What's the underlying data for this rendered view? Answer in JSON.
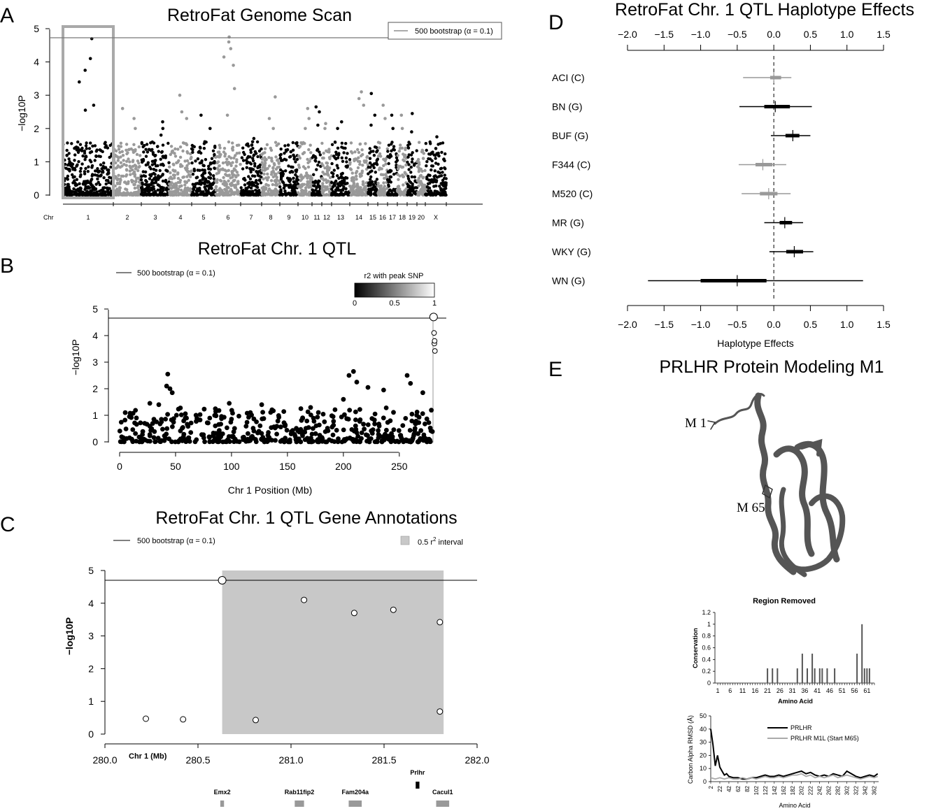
{
  "panel_letters": {
    "a": "A",
    "b": "B",
    "c": "C",
    "d": "D",
    "e": "E"
  },
  "colors": {
    "dark": "#000000",
    "light": "#999999",
    "shade": "#c8c8c8",
    "box": "#a9a9a9"
  },
  "chart_data": [
    {
      "id": "A",
      "type": "scatter",
      "title": "RetroFat Genome Scan",
      "ylabel": "−log10P",
      "xlabel": "Chr",
      "ylim": [
        0,
        5
      ],
      "yticks": [
        "0",
        "1",
        "2",
        "3",
        "4",
        "5"
      ],
      "threshold": 4.7,
      "legend": "500 bootstrap (α = 0.1)",
      "legend_position": "top-right",
      "highlight_chromosome": "1",
      "chromosomes": [
        {
          "name": "1",
          "tone": "dark",
          "peaks": [
            2.55,
            2.7,
            4.7,
            4.1,
            3.75,
            3.4
          ]
        },
        {
          "name": "2",
          "tone": "light",
          "peaks": [
            2.6,
            2.3,
            2.0
          ]
        },
        {
          "name": "3",
          "tone": "dark",
          "peaks": [
            2.2,
            2.0,
            1.8
          ]
        },
        {
          "name": "4",
          "tone": "light",
          "peaks": [
            3.0,
            2.5,
            2.3
          ]
        },
        {
          "name": "5",
          "tone": "dark",
          "peaks": [
            2.4,
            2.0,
            1.6
          ]
        },
        {
          "name": "6",
          "tone": "light",
          "peaks": [
            4.75,
            4.6,
            4.4,
            4.15,
            3.9,
            3.2,
            2.4
          ]
        },
        {
          "name": "7",
          "tone": "dark",
          "peaks": [
            1.7,
            1.6,
            1.5
          ]
        },
        {
          "name": "8",
          "tone": "light",
          "peaks": [
            2.95,
            2.3,
            2.0
          ]
        },
        {
          "name": "9",
          "tone": "dark",
          "peaks": [
            1.5,
            1.3,
            1.2
          ]
        },
        {
          "name": "10",
          "tone": "light",
          "peaks": [
            2.6,
            2.3,
            2.0
          ]
        },
        {
          "name": "11",
          "tone": "dark",
          "peaks": [
            2.65,
            2.5,
            2.1
          ]
        },
        {
          "name": "12",
          "tone": "light",
          "peaks": [
            2.15,
            2.0
          ]
        },
        {
          "name": "13",
          "tone": "dark",
          "peaks": [
            2.2,
            2.0
          ]
        },
        {
          "name": "14",
          "tone": "light",
          "peaks": [
            3.1,
            2.9,
            2.7
          ]
        },
        {
          "name": "15",
          "tone": "dark",
          "peaks": [
            3.05,
            2.4,
            2.1
          ]
        },
        {
          "name": "16",
          "tone": "light",
          "peaks": [
            2.7,
            2.3
          ]
        },
        {
          "name": "17",
          "tone": "dark",
          "peaks": [
            2.4,
            2.0
          ]
        },
        {
          "name": "18",
          "tone": "light",
          "peaks": [
            2.4,
            2.0
          ]
        },
        {
          "name": "19",
          "tone": "dark",
          "peaks": [
            2.45,
            1.9
          ]
        },
        {
          "name": "20",
          "tone": "light",
          "peaks": [
            1.3,
            1.1
          ]
        },
        {
          "name": "X",
          "tone": "dark",
          "peaks": [
            1.75,
            1.4
          ]
        }
      ]
    },
    {
      "id": "B",
      "type": "scatter",
      "title": "RetroFat Chr. 1 QTL",
      "xlabel": "Chr 1 Position (Mb)",
      "ylabel": "−log10P",
      "xlim": [
        0,
        282
      ],
      "ylim": [
        0,
        5
      ],
      "xticks": [
        "0",
        "50",
        "100",
        "150",
        "200",
        "250"
      ],
      "yticks": [
        "0",
        "1",
        "2",
        "3",
        "4",
        "5"
      ],
      "threshold": 4.7,
      "legend": "500 bootstrap (α = 0.1)",
      "colorbar": {
        "title": "r2 with peak SNP",
        "ticks": [
          "0",
          "0.5",
          "1"
        ]
      },
      "peak": {
        "x": 280.63,
        "y": 4.7
      },
      "top_points": [
        {
          "x": 43,
          "y": 2.55
        },
        {
          "x": 42,
          "y": 2.1
        },
        {
          "x": 45,
          "y": 2.0
        },
        {
          "x": 47,
          "y": 1.85
        },
        {
          "x": 209,
          "y": 2.65
        },
        {
          "x": 205,
          "y": 2.5
        },
        {
          "x": 212,
          "y": 2.25
        },
        {
          "x": 200,
          "y": 1.6
        },
        {
          "x": 222,
          "y": 2.05
        },
        {
          "x": 236,
          "y": 1.95
        },
        {
          "x": 257,
          "y": 2.5
        },
        {
          "x": 260,
          "y": 2.2
        },
        {
          "x": 271,
          "y": 1.85
        },
        {
          "x": 98,
          "y": 1.45
        },
        {
          "x": 127,
          "y": 1.4
        },
        {
          "x": 27,
          "y": 1.45
        },
        {
          "x": 35,
          "y": 1.4
        },
        {
          "x": 162,
          "y": 1.25
        },
        {
          "x": 5,
          "y": 1.1
        },
        {
          "x": 15,
          "y": 0.9
        }
      ],
      "near_peak": [
        {
          "x": 281.07,
          "y": 4.1
        },
        {
          "x": 281.34,
          "y": 3.7
        },
        {
          "x": 281.55,
          "y": 3.8
        },
        {
          "x": 281.8,
          "y": 3.42
        }
      ]
    },
    {
      "id": "C",
      "type": "scatter",
      "title": "RetroFat Chr. 1 QTL Gene Annotations",
      "xlabel": "Chr 1 (Mb)",
      "ylabel": "−log10P",
      "xlim": [
        280.0,
        282.0
      ],
      "ylim": [
        0,
        5
      ],
      "xticks": [
        "280.0",
        "280.5",
        "281.0",
        "281.5",
        "282.0"
      ],
      "yticks": [
        "0",
        "1",
        "2",
        "3",
        "4",
        "5"
      ],
      "threshold": 4.7,
      "legend": "500 bootstrap (α = 0.1)",
      "interval_legend": "0.5 r",
      "interval_legend_sup": "2",
      "interval_legend_tail": " interval",
      "interval": [
        280.63,
        281.82
      ],
      "points": [
        {
          "x": 280.22,
          "y": 0.47
        },
        {
          "x": 280.42,
          "y": 0.45
        },
        {
          "x": 280.63,
          "y": 4.7
        },
        {
          "x": 280.81,
          "y": 0.43
        },
        {
          "x": 281.07,
          "y": 4.1
        },
        {
          "x": 281.34,
          "y": 3.7
        },
        {
          "x": 281.55,
          "y": 3.8
        },
        {
          "x": 281.8,
          "y": 3.42
        },
        {
          "x": 281.8,
          "y": 0.69
        }
      ],
      "genes": [
        {
          "name": "Emx2",
          "start": 280.62,
          "end": 280.64,
          "row": 2
        },
        {
          "name": "Rab11fip2",
          "start": 281.02,
          "end": 281.07,
          "row": 2
        },
        {
          "name": "Fam204a",
          "start": 281.31,
          "end": 281.38,
          "row": 2
        },
        {
          "name": "Prlhr",
          "start": 281.67,
          "end": 281.69,
          "row": 1
        },
        {
          "name": "Cacul1",
          "start": 281.78,
          "end": 281.85,
          "row": 2
        }
      ]
    },
    {
      "id": "D",
      "type": "scatter",
      "title": "RetroFat Chr. 1 QTL Haplotype Effects",
      "xlabel": "Haplotype Effects",
      "xlim": [
        -2.0,
        1.5
      ],
      "xticks": [
        "−2.0",
        "−1.5",
        "−1.0",
        "−0.5",
        "0.0",
        "0.5",
        "1.0",
        "1.5"
      ],
      "strains": [
        {
          "label": "ACI (C)",
          "tone": "light",
          "mean": 0.0,
          "ci90": [
            -0.42,
            0.24
          ],
          "ci50": [
            -0.05,
            0.1
          ]
        },
        {
          "label": "BN (G)",
          "tone": "dark",
          "mean": 0.02,
          "ci90": [
            -0.47,
            0.52
          ],
          "ci50": [
            -0.13,
            0.22
          ]
        },
        {
          "label": "BUF (G)",
          "tone": "dark",
          "mean": 0.26,
          "ci90": [
            -0.04,
            0.5
          ],
          "ci50": [
            0.16,
            0.35
          ]
        },
        {
          "label": "F344 (C)",
          "tone": "light",
          "mean": -0.15,
          "ci90": [
            -0.48,
            0.17
          ],
          "ci50": [
            -0.25,
            -0.02
          ]
        },
        {
          "label": "M520 (C)",
          "tone": "light",
          "mean": -0.07,
          "ci90": [
            -0.44,
            0.23
          ],
          "ci50": [
            -0.19,
            0.05
          ]
        },
        {
          "label": "MR (G)",
          "tone": "dark",
          "mean": 0.15,
          "ci90": [
            -0.13,
            0.4
          ],
          "ci50": [
            0.08,
            0.25
          ]
        },
        {
          "label": "WKY (G)",
          "tone": "dark",
          "mean": 0.28,
          "ci90": [
            -0.06,
            0.54
          ],
          "ci50": [
            0.17,
            0.4
          ]
        },
        {
          "label": "WN (G)",
          "tone": "dark",
          "mean": -0.5,
          "ci90": [
            -1.72,
            1.22
          ],
          "ci50": [
            -1.0,
            -0.1
          ]
        }
      ]
    },
    {
      "id": "E1",
      "type": "bar",
      "title": "Region Removed",
      "xlabel": "Amino Acid",
      "ylabel": "Conservation",
      "ylim": [
        0,
        1.2
      ],
      "yticks": [
        "0",
        "0.2",
        "0.4",
        "0.6",
        "0.8",
        "1",
        "1.2"
      ],
      "xticks": [
        "1",
        "6",
        "11",
        "16",
        "21",
        "26",
        "31",
        "36",
        "41",
        "46",
        "51",
        "56",
        "61"
      ],
      "categories": [
        21,
        23,
        25,
        33,
        35,
        37,
        39,
        40,
        42,
        43,
        45,
        48,
        57,
        59,
        60,
        61,
        62
      ],
      "values": [
        0.25,
        0.25,
        0.25,
        0.25,
        0.5,
        0.25,
        0.5,
        0.25,
        0.25,
        0.25,
        0.25,
        0.25,
        0.5,
        1.0,
        0.25,
        0.25,
        0.25
      ]
    },
    {
      "id": "E2",
      "type": "line",
      "xlabel": "Amino Acid",
      "ylabel": "Carbon Alpha RMSD (Å)",
      "ylim": [
        0,
        50
      ],
      "yticks": [
        "0",
        "10",
        "20",
        "30",
        "40",
        "50"
      ],
      "xticks": [
        "2",
        "22",
        "42",
        "62",
        "82",
        "102",
        "122",
        "142",
        "162",
        "182",
        "202",
        "222",
        "242",
        "262",
        "282",
        "302",
        "322",
        "342",
        "362"
      ],
      "series": [
        {
          "name": "PRLHR",
          "tone": "dark",
          "x": [
            2,
            7,
            12,
            17,
            22,
            27,
            32,
            37,
            42,
            52,
            62,
            72,
            82,
            92,
            102,
            112,
            122,
            132,
            142,
            152,
            162,
            172,
            182,
            192,
            202,
            212,
            222,
            232,
            242,
            252,
            262,
            272,
            282,
            292,
            302,
            312,
            322,
            332,
            342,
            352,
            362,
            370
          ],
          "y": [
            40,
            28,
            12,
            20,
            11,
            8,
            5,
            6,
            4,
            3,
            3,
            2,
            2,
            3,
            3,
            4,
            5,
            4,
            4,
            5,
            4,
            5,
            6,
            7,
            8,
            6,
            7,
            5,
            4,
            5,
            4,
            6,
            5,
            4,
            8,
            6,
            4,
            3,
            4,
            5,
            4,
            6
          ]
        },
        {
          "name": "PRLHR M1L (Start M65)",
          "tone": "light",
          "x": [
            2,
            12,
            22,
            32,
            42,
            52,
            62,
            72,
            82,
            92,
            102,
            112,
            122,
            132,
            142,
            152,
            162,
            172,
            182,
            192,
            202,
            212,
            222,
            232,
            242,
            252,
            262,
            272,
            282,
            292,
            302,
            312,
            322,
            332,
            342,
            352,
            362,
            370
          ],
          "y": [
            3,
            2,
            3,
            2,
            3,
            2,
            2,
            3,
            2,
            3,
            2,
            3,
            4,
            3,
            3,
            4,
            3,
            4,
            5,
            5,
            6,
            4,
            5,
            3,
            4,
            3,
            4,
            5,
            3,
            4,
            5,
            4,
            3,
            2,
            3,
            4,
            3,
            4
          ]
        }
      ]
    }
  ],
  "protein": {
    "title": "PRLHR Protein Modeling M1",
    "m1_label": "M 1",
    "m65_label": "M 65"
  }
}
